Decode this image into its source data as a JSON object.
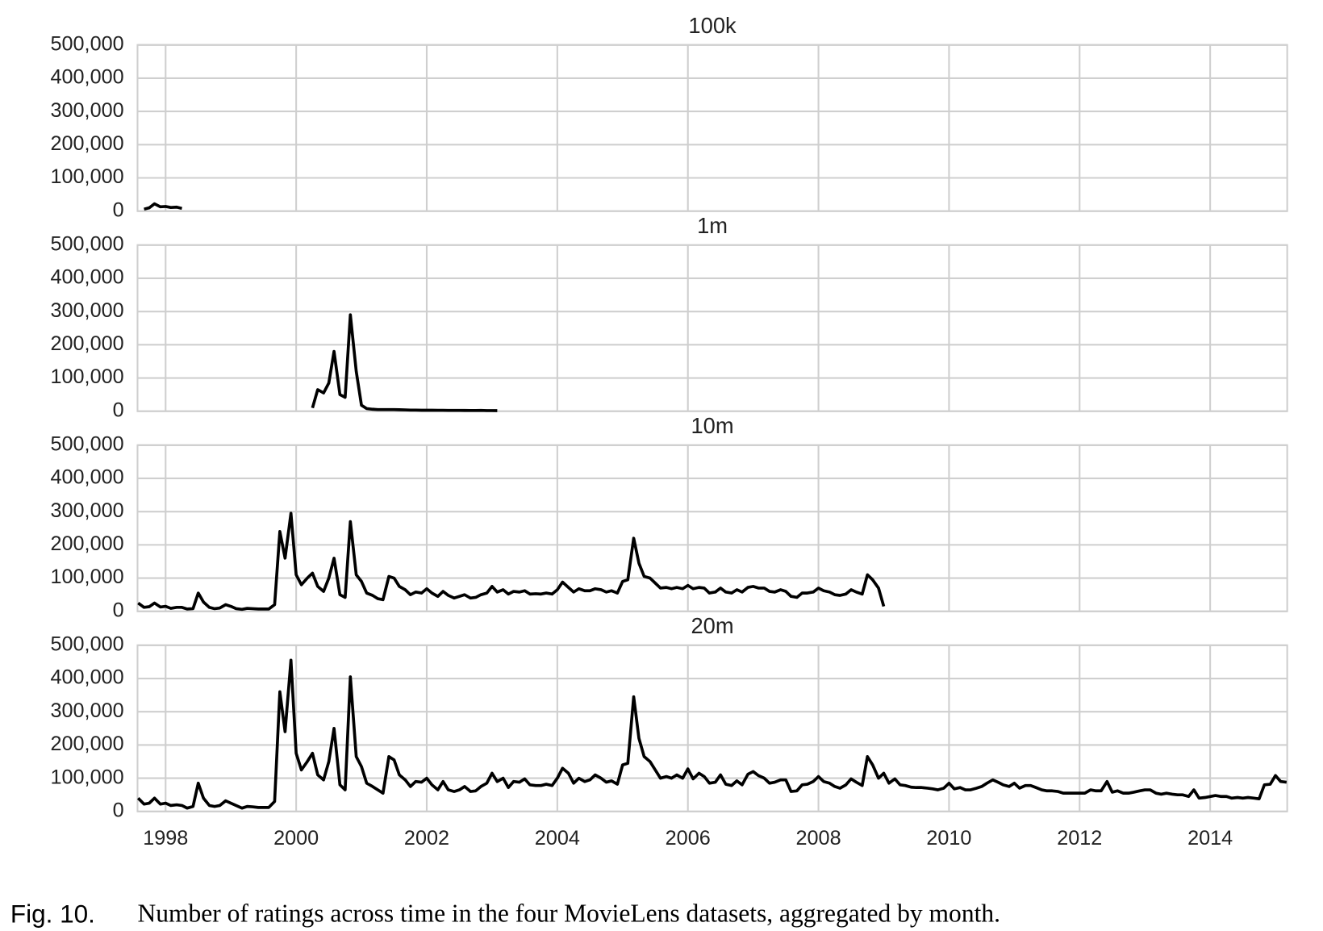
{
  "chart_data": [
    {
      "type": "line",
      "title": "100k",
      "x": [
        1997.67,
        1997.75,
        1997.83,
        1997.92,
        1998,
        1998.08,
        1998.17,
        1998.25
      ],
      "values": [
        6000,
        10000,
        22000,
        13000,
        14000,
        11000,
        12000,
        8000
      ],
      "color": "#000000",
      "xlim": [
        1997.57,
        2015.18
      ],
      "xticks": [
        1998,
        2000,
        2002,
        2004,
        2006,
        2008,
        2010,
        2012,
        2014
      ],
      "ylim": [
        0,
        500000
      ],
      "yticks": [
        0,
        {
          "value": 100000,
          "label": "100,000"
        },
        {
          "value": 200000,
          "label": "200,000"
        },
        {
          "value": 300000,
          "label": "300,000"
        },
        {
          "value": 400000,
          "label": "400,000"
        },
        {
          "value": 500000,
          "label": "500,000"
        }
      ],
      "grid": true
    },
    {
      "type": "line",
      "title": "1m",
      "x": [
        2000.25,
        2000.33,
        2000.42,
        2000.5,
        2000.58,
        2000.67,
        2000.75,
        2000.83,
        2000.92,
        2001,
        2001.08,
        2001.17,
        2001.25,
        2001.33,
        2001.42,
        2001.5,
        2001.58,
        2001.67,
        2001.75,
        2001.83,
        2001.92,
        2002,
        2002.08,
        2002.17,
        2002.25,
        2002.33,
        2002.42,
        2002.5,
        2002.58,
        2002.67,
        2002.75,
        2002.83,
        2002.92,
        2003,
        2003.08
      ],
      "values": [
        10000,
        65000,
        55000,
        85000,
        180000,
        50000,
        42000,
        290000,
        120000,
        18000,
        8000,
        6000,
        5000,
        5000,
        5000,
        5000,
        4500,
        4000,
        3500,
        3500,
        3000,
        3000,
        3000,
        2800,
        2800,
        2600,
        2500,
        2500,
        2400,
        2300,
        2200,
        2500,
        2000,
        2000,
        1800
      ],
      "color": "#000000",
      "xlim": [
        1997.57,
        2015.18
      ],
      "xticks": [
        1998,
        2000,
        2002,
        2004,
        2006,
        2008,
        2010,
        2012,
        2014
      ],
      "ylim": [
        0,
        500000
      ],
      "yticks": [
        0,
        {
          "value": 100000,
          "label": "100,000"
        },
        {
          "value": 200000,
          "label": "200,000"
        },
        {
          "value": 300000,
          "label": "300,000"
        },
        {
          "value": 400000,
          "label": "400,000"
        },
        {
          "value": 500000,
          "label": "500,000"
        }
      ],
      "grid": true
    },
    {
      "type": "line",
      "title": "10m",
      "x": [
        1997.58,
        1997.67,
        1997.75,
        1997.83,
        1997.92,
        1998,
        1998.08,
        1998.17,
        1998.25,
        1998.33,
        1998.42,
        1998.5,
        1998.58,
        1998.67,
        1998.75,
        1998.83,
        1998.92,
        1999,
        1999.08,
        1999.17,
        1999.25,
        1999.33,
        1999.42,
        1999.5,
        1999.58,
        1999.67,
        1999.75,
        1999.83,
        1999.92,
        2000,
        2000.08,
        2000.17,
        2000.25,
        2000.33,
        2000.42,
        2000.5,
        2000.58,
        2000.67,
        2000.75,
        2000.83,
        2000.92,
        2001,
        2001.08,
        2001.17,
        2001.25,
        2001.33,
        2001.42,
        2001.5,
        2001.58,
        2001.67,
        2001.75,
        2001.83,
        2001.92,
        2002,
        2002.08,
        2002.17,
        2002.25,
        2002.33,
        2002.42,
        2002.5,
        2002.58,
        2002.67,
        2002.75,
        2002.83,
        2002.92,
        2003,
        2003.08,
        2003.17,
        2003.25,
        2003.33,
        2003.42,
        2003.5,
        2003.58,
        2003.67,
        2003.75,
        2003.83,
        2003.92,
        2004,
        2004.08,
        2004.17,
        2004.25,
        2004.33,
        2004.42,
        2004.5,
        2004.58,
        2004.67,
        2004.75,
        2004.83,
        2004.92,
        2005,
        2005.08,
        2005.17,
        2005.25,
        2005.33,
        2005.42,
        2005.5,
        2005.58,
        2005.67,
        2005.75,
        2005.83,
        2005.92,
        2006,
        2006.08,
        2006.17,
        2006.25,
        2006.33,
        2006.42,
        2006.5,
        2006.58,
        2006.67,
        2006.75,
        2006.83,
        2006.92,
        2007,
        2007.08,
        2007.17,
        2007.25,
        2007.33,
        2007.42,
        2007.5,
        2007.58,
        2007.67,
        2007.75,
        2007.83,
        2007.92,
        2008,
        2008.08,
        2008.17,
        2008.25,
        2008.33,
        2008.42,
        2008.5,
        2008.58,
        2008.67,
        2008.75,
        2008.83,
        2008.92,
        2009
      ],
      "values": [
        25000,
        12000,
        14000,
        25000,
        13000,
        15000,
        9000,
        12000,
        12000,
        7000,
        8000,
        55000,
        28000,
        12000,
        8000,
        10000,
        20000,
        15000,
        8000,
        6000,
        9000,
        8000,
        7000,
        7000,
        7000,
        20000,
        240000,
        160000,
        295000,
        110000,
        80000,
        100000,
        115000,
        75000,
        60000,
        100000,
        160000,
        50000,
        42000,
        270000,
        110000,
        90000,
        55000,
        48000,
        38000,
        35000,
        105000,
        100000,
        75000,
        65000,
        50000,
        58000,
        55000,
        68000,
        55000,
        45000,
        60000,
        48000,
        40000,
        45000,
        50000,
        40000,
        42000,
        50000,
        55000,
        75000,
        58000,
        65000,
        52000,
        60000,
        58000,
        62000,
        52000,
        53000,
        52000,
        55000,
        52000,
        65000,
        88000,
        72000,
        58000,
        68000,
        62000,
        62000,
        68000,
        65000,
        58000,
        62000,
        55000,
        90000,
        95000,
        220000,
        145000,
        105000,
        100000,
        85000,
        70000,
        72000,
        68000,
        72000,
        68000,
        78000,
        68000,
        72000,
        70000,
        55000,
        58000,
        70000,
        58000,
        55000,
        65000,
        58000,
        72000,
        75000,
        70000,
        70000,
        60000,
        58000,
        65000,
        60000,
        45000,
        42000,
        55000,
        55000,
        58000,
        70000,
        62000,
        58000,
        50000,
        48000,
        52000,
        65000,
        58000,
        52000,
        110000,
        95000,
        70000,
        15000
      ],
      "color": "#000000",
      "xlim": [
        1997.57,
        2015.18
      ],
      "xticks": [
        1998,
        2000,
        2002,
        2004,
        2006,
        2008,
        2010,
        2012,
        2014
      ],
      "ylim": [
        0,
        500000
      ],
      "yticks": [
        0,
        {
          "value": 100000,
          "label": "100,000"
        },
        {
          "value": 200000,
          "label": "200,000"
        },
        {
          "value": 300000,
          "label": "300,000"
        },
        {
          "value": 400000,
          "label": "400,000"
        },
        {
          "value": 500000,
          "label": "500,000"
        }
      ],
      "grid": true
    },
    {
      "type": "line",
      "title": "20m",
      "x": [
        1997.58,
        1997.67,
        1997.75,
        1997.83,
        1997.92,
        1998,
        1998.08,
        1998.17,
        1998.25,
        1998.33,
        1998.42,
        1998.5,
        1998.58,
        1998.67,
        1998.75,
        1998.83,
        1998.92,
        1999,
        1999.08,
        1999.17,
        1999.25,
        1999.33,
        1999.42,
        1999.5,
        1999.58,
        1999.67,
        1999.75,
        1999.83,
        1999.92,
        2000,
        2000.08,
        2000.17,
        2000.25,
        2000.33,
        2000.42,
        2000.5,
        2000.58,
        2000.67,
        2000.75,
        2000.83,
        2000.92,
        2001,
        2001.08,
        2001.17,
        2001.25,
        2001.33,
        2001.42,
        2001.5,
        2001.58,
        2001.67,
        2001.75,
        2001.83,
        2001.92,
        2002,
        2002.08,
        2002.17,
        2002.25,
        2002.33,
        2002.42,
        2002.5,
        2002.58,
        2002.67,
        2002.75,
        2002.83,
        2002.92,
        2003,
        2003.08,
        2003.17,
        2003.25,
        2003.33,
        2003.42,
        2003.5,
        2003.58,
        2003.67,
        2003.75,
        2003.83,
        2003.92,
        2004,
        2004.08,
        2004.17,
        2004.25,
        2004.33,
        2004.42,
        2004.5,
        2004.58,
        2004.67,
        2004.75,
        2004.83,
        2004.92,
        2005,
        2005.08,
        2005.17,
        2005.25,
        2005.33,
        2005.42,
        2005.5,
        2005.58,
        2005.67,
        2005.75,
        2005.83,
        2005.92,
        2006,
        2006.08,
        2006.17,
        2006.25,
        2006.33,
        2006.42,
        2006.5,
        2006.58,
        2006.67,
        2006.75,
        2006.83,
        2006.92,
        2007,
        2007.08,
        2007.17,
        2007.25,
        2007.33,
        2007.42,
        2007.5,
        2007.58,
        2007.67,
        2007.75,
        2007.83,
        2007.92,
        2008,
        2008.08,
        2008.17,
        2008.25,
        2008.33,
        2008.42,
        2008.5,
        2008.58,
        2008.67,
        2008.75,
        2008.83,
        2008.92,
        2009,
        2009.08,
        2009.17,
        2009.25,
        2009.33,
        2009.42,
        2009.5,
        2009.58,
        2009.67,
        2009.75,
        2009.83,
        2009.92,
        2010,
        2010.08,
        2010.17,
        2010.25,
        2010.33,
        2010.42,
        2010.5,
        2010.58,
        2010.67,
        2010.75,
        2010.83,
        2010.92,
        2011,
        2011.08,
        2011.17,
        2011.25,
        2011.33,
        2011.42,
        2011.5,
        2011.58,
        2011.67,
        2011.75,
        2011.83,
        2011.92,
        2012,
        2012.08,
        2012.17,
        2012.25,
        2012.33,
        2012.42,
        2012.5,
        2012.58,
        2012.67,
        2012.75,
        2012.83,
        2012.92,
        2013,
        2013.08,
        2013.17,
        2013.25,
        2013.33,
        2013.42,
        2013.5,
        2013.58,
        2013.67,
        2013.75,
        2013.83,
        2013.92,
        2014,
        2014.08,
        2014.17,
        2014.25,
        2014.33,
        2014.42,
        2014.5,
        2014.58,
        2014.67,
        2014.75,
        2014.83,
        2014.92,
        2015,
        2015.08,
        2015.17
      ],
      "values": [
        40000,
        22000,
        25000,
        40000,
        22000,
        25000,
        18000,
        20000,
        18000,
        10000,
        15000,
        85000,
        40000,
        18000,
        15000,
        18000,
        32000,
        25000,
        18000,
        10000,
        15000,
        14000,
        12000,
        12000,
        12000,
        30000,
        360000,
        240000,
        455000,
        175000,
        125000,
        150000,
        175000,
        110000,
        95000,
        150000,
        250000,
        80000,
        65000,
        405000,
        165000,
        135000,
        85000,
        75000,
        65000,
        55000,
        165000,
        155000,
        110000,
        95000,
        75000,
        90000,
        88000,
        100000,
        80000,
        65000,
        90000,
        65000,
        60000,
        65000,
        75000,
        60000,
        62000,
        75000,
        85000,
        115000,
        90000,
        100000,
        72000,
        90000,
        88000,
        98000,
        80000,
        78000,
        78000,
        82000,
        78000,
        100000,
        130000,
        115000,
        85000,
        100000,
        90000,
        95000,
        110000,
        100000,
        88000,
        92000,
        82000,
        140000,
        145000,
        345000,
        220000,
        165000,
        150000,
        125000,
        100000,
        105000,
        100000,
        110000,
        100000,
        128000,
        98000,
        115000,
        105000,
        85000,
        88000,
        110000,
        82000,
        78000,
        92000,
        80000,
        112000,
        120000,
        108000,
        100000,
        85000,
        88000,
        95000,
        95000,
        60000,
        62000,
        80000,
        82000,
        90000,
        105000,
        90000,
        85000,
        75000,
        70000,
        80000,
        98000,
        88000,
        78000,
        165000,
        140000,
        100000,
        115000,
        85000,
        98000,
        80000,
        78000,
        73000,
        72000,
        72000,
        70000,
        68000,
        65000,
        70000,
        85000,
        68000,
        72000,
        65000,
        65000,
        70000,
        75000,
        85000,
        95000,
        88000,
        80000,
        75000,
        85000,
        70000,
        78000,
        78000,
        72000,
        65000,
        62000,
        62000,
        60000,
        55000,
        55000,
        55000,
        55000,
        55000,
        65000,
        62000,
        62000,
        90000,
        58000,
        62000,
        55000,
        55000,
        58000,
        62000,
        65000,
        65000,
        55000,
        52000,
        55000,
        52000,
        50000,
        50000,
        45000,
        65000,
        40000,
        42000,
        45000,
        48000,
        45000,
        45000,
        40000,
        42000,
        40000,
        42000,
        40000,
        38000,
        80000,
        82000,
        108000,
        90000,
        88000
      ],
      "color": "#000000",
      "xlim": [
        1997.57,
        2015.18
      ],
      "xticks": [
        1998,
        2000,
        2002,
        2004,
        2006,
        2008,
        2010,
        2012,
        2014
      ],
      "ylim": [
        0,
        500000
      ],
      "yticks": [
        0,
        {
          "value": 100000,
          "label": "100,000"
        },
        {
          "value": 200000,
          "label": "200,000"
        },
        {
          "value": 300000,
          "label": "300,000"
        },
        {
          "value": 400000,
          "label": "400,000"
        },
        {
          "value": 500000,
          "label": "500,000"
        }
      ],
      "grid": true
    }
  ],
  "caption": {
    "label": "Fig. 10.",
    "text": "Number of ratings across time in the four MovieLens datasets, aggregated by month."
  }
}
